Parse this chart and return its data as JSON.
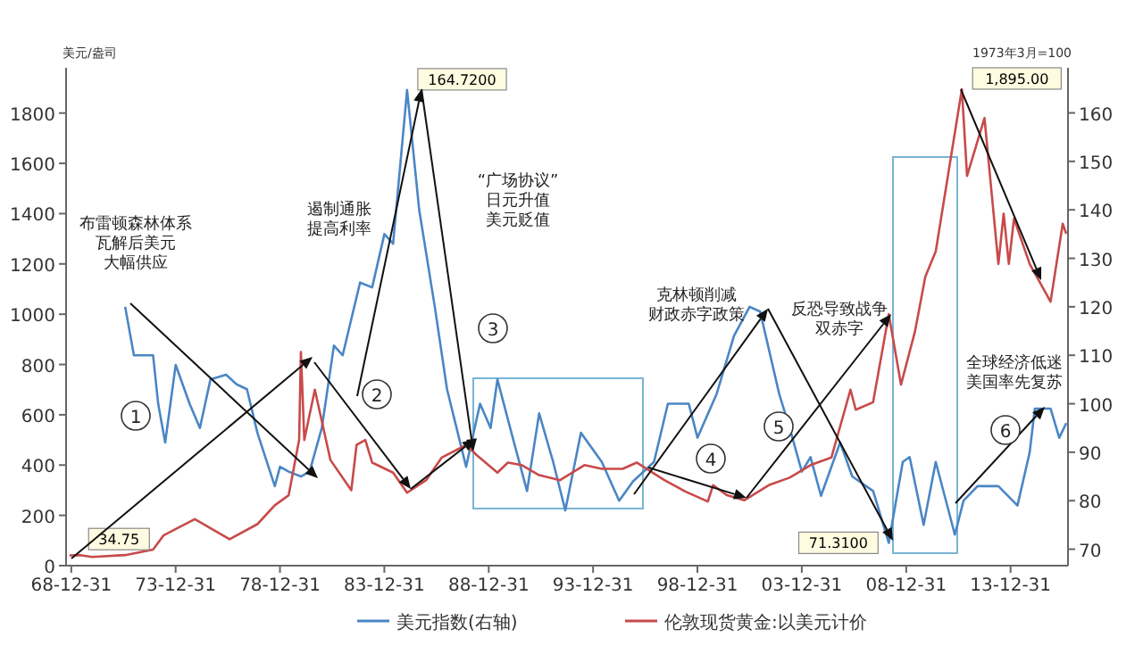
{
  "chart_data": {
    "type": "line",
    "ylabel": "美元/盎司",
    "y2label": "1973年3月=100",
    "xlim": [
      "1968-10-01",
      "2016-10-01"
    ],
    "ylim": [
      0,
      1980
    ],
    "y2lim": [
      66.6,
      169.3
    ],
    "xticks": [
      {
        "value": "1968-12-31",
        "label": "68-12-31"
      },
      {
        "value": "1973-12-31",
        "label": "73-12-31"
      },
      {
        "value": "1978-12-31",
        "label": "78-12-31"
      },
      {
        "value": "1983-12-31",
        "label": "83-12-31"
      },
      {
        "value": "1988-12-31",
        "label": "88-12-31"
      },
      {
        "value": "1993-12-31",
        "label": "93-12-31"
      },
      {
        "value": "1998-12-31",
        "label": "98-12-31"
      },
      {
        "value": "2003-12-31",
        "label": "03-12-31"
      },
      {
        "value": "2008-12-31",
        "label": "08-12-31"
      },
      {
        "value": "2013-12-31",
        "label": "13-12-31"
      }
    ],
    "yticks": [
      0,
      200,
      400,
      600,
      800,
      1000,
      1200,
      1400,
      1600,
      1800
    ],
    "y2ticks": [
      70,
      80,
      90,
      100,
      110,
      120,
      130,
      140,
      150,
      160
    ],
    "legend": "bottom",
    "grid": false,
    "marker": "none",
    "line_style": "solid",
    "series": [
      {
        "name": "美元指数(右轴)",
        "color": "#4a86c5",
        "axis": "y2",
        "x": [
          "1971-08",
          "1972-01",
          "1972-12",
          "1973-03",
          "1973-07",
          "1974-01",
          "1974-09",
          "1975-03",
          "1975-09",
          "1976-06",
          "1976-12",
          "1977-06",
          "1977-12",
          "1978-10",
          "1979-01",
          "1979-06",
          "1980-01",
          "1980-06",
          "1981-01",
          "1981-08",
          "1982-01",
          "1982-11",
          "1983-06",
          "1984-01",
          "1984-06",
          "1985-02",
          "1985-09",
          "1986-06",
          "1987-01",
          "1987-12",
          "1988-08",
          "1989-02",
          "1989-06",
          "1990-02",
          "1990-11",
          "1991-06",
          "1992-02",
          "1992-09",
          "1993-06",
          "1994-06",
          "1995-04",
          "1995-12",
          "1996-12",
          "1997-08",
          "1998-08",
          "1999-01",
          "1999-12",
          "2000-10",
          "2001-07",
          "2002-01",
          "2002-12",
          "2003-06",
          "2004-01",
          "2004-06",
          "2004-12",
          "2005-11",
          "2006-06",
          "2007-06",
          "2008-03",
          "2008-11",
          "2009-03",
          "2009-11",
          "2010-06",
          "2011-05",
          "2011-10",
          "2012-06",
          "2013-06",
          "2014-05",
          "2014-12",
          "2015-03",
          "2015-12",
          "2016-05",
          "2016-09"
        ],
        "values": [
          120,
          110,
          110,
          100,
          92,
          108,
          100,
          95,
          105,
          106,
          104,
          103,
          94,
          83,
          87,
          86,
          85,
          86,
          95,
          112,
          110,
          125,
          124,
          135,
          133,
          164.72,
          140,
          120,
          103,
          87,
          100,
          95,
          105,
          94,
          82,
          98,
          88,
          78,
          94,
          88,
          80,
          84,
          88,
          100,
          100,
          93,
          102,
          114,
          120,
          119,
          102,
          95,
          86,
          89,
          81,
          92,
          85,
          82,
          71.31,
          88,
          89,
          75,
          88,
          73,
          80,
          83,
          83,
          79,
          90,
          99,
          99,
          93,
          96
        ],
        "value_labels": [
          null,
          null,
          null,
          null,
          null,
          null,
          null,
          null,
          null,
          null,
          null,
          null,
          null,
          null,
          null,
          null,
          null,
          null,
          null,
          null,
          null,
          null,
          null,
          null,
          null,
          "164.7200",
          null,
          null,
          null,
          null,
          null,
          null,
          null,
          null,
          null,
          null,
          null,
          null,
          null,
          null,
          null,
          null,
          null,
          null,
          null,
          null,
          null,
          null,
          null,
          null,
          null,
          null,
          null,
          null,
          null,
          null,
          null,
          null,
          "71.3100",
          null,
          null,
          null,
          null,
          null,
          null,
          null,
          null,
          null,
          null,
          null,
          null,
          null,
          null
        ]
      },
      {
        "name": "伦敦现货黄金:以美元计价",
        "color": "#c84a4a",
        "x": [
          "1968-12",
          "1969-06",
          "1970-01",
          "1971-08",
          "1972-12",
          "1973-06",
          "1974-12",
          "1976-08",
          "1977-12",
          "1978-10",
          "1979-06",
          "1979-12",
          "1980-01",
          "1980-03",
          "1980-09",
          "1981-06",
          "1982-06",
          "1982-09",
          "1983-02",
          "1983-06",
          "1984-06",
          "1985-02",
          "1986-01",
          "1986-10",
          "1987-12",
          "1988-06",
          "1989-06",
          "1989-12",
          "1990-08",
          "1991-06",
          "1992-06",
          "1993-08",
          "1994-06",
          "1995-06",
          "1996-02",
          "1997-06",
          "1998-06",
          "1999-07",
          "1999-10",
          "2000-06",
          "2001-04",
          "2002-06",
          "2003-06",
          "2004-06",
          "2005-06",
          "2006-05",
          "2006-08",
          "2007-06",
          "2008-03",
          "2008-10",
          "2009-06",
          "2009-12",
          "2010-06",
          "2011-09",
          "2011-12",
          "2012-10",
          "2013-06",
          "2013-09",
          "2013-12",
          "2014-03",
          "2014-12",
          "2015-12",
          "2016-07",
          "2016-09"
        ],
        "values": [
          41,
          42,
          34.75,
          42,
          64,
          120,
          185,
          105,
          165,
          240,
          280,
          500,
          850,
          500,
          700,
          420,
          300,
          480,
          500,
          410,
          370,
          290,
          340,
          430,
          480,
          440,
          370,
          410,
          400,
          360,
          340,
          400,
          385,
          385,
          410,
          340,
          295,
          255,
          320,
          280,
          260,
          320,
          350,
          400,
          430,
          700,
          620,
          650,
          1000,
          720,
          930,
          1150,
          1250,
          1895,
          1550,
          1780,
          1200,
          1400,
          1200,
          1380,
          1200,
          1050,
          1360,
          1320
        ],
        "value_labels": [
          null,
          null,
          "34.75",
          null,
          null,
          null,
          null,
          null,
          null,
          null,
          null,
          null,
          null,
          null,
          null,
          null,
          null,
          null,
          null,
          null,
          null,
          null,
          null,
          null,
          null,
          null,
          null,
          null,
          null,
          null,
          null,
          null,
          null,
          null,
          null,
          null,
          null,
          null,
          null,
          null,
          null,
          null,
          null,
          null,
          null,
          null,
          null,
          null,
          null,
          null,
          null,
          null,
          null,
          "1,895.00",
          null,
          null,
          null,
          null,
          null,
          null,
          null,
          null,
          null,
          null
        ]
      }
    ],
    "annotations": [
      "布雷顿森林体系瓦解后美元大幅供应",
      "遏制通胀提高利率",
      "“广场协议”日元升值美元贬值",
      "克林顿削减财政赤字政策",
      "反恐导致战争双赤字",
      "全球经济低迷美国率先复苏",
      "1",
      "2",
      "3",
      "4",
      "5",
      "6"
    ]
  }
}
